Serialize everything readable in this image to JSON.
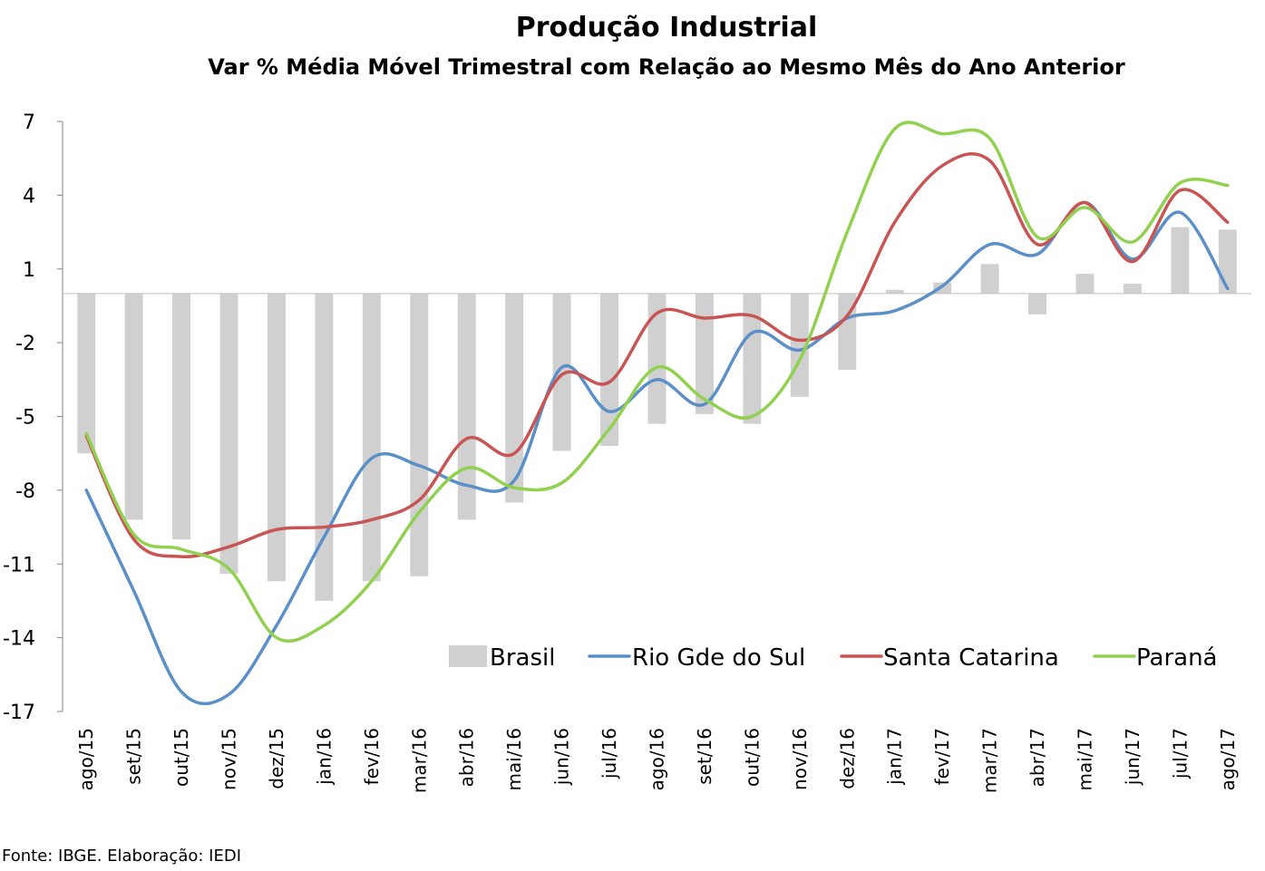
{
  "chart_data": {
    "type": "bar+line",
    "title": "Produção Industrial",
    "subtitle": "Var % Média Móvel Trimestral com Relação ao Mesmo Mês do Ano Anterior",
    "source": "Fonte: IBGE. Elaboração: IEDI",
    "ylim": [
      -17,
      7
    ],
    "yticks": [
      7,
      4,
      1,
      -2,
      -5,
      -8,
      -11,
      -14,
      -17
    ],
    "legend_position": "bottom-right",
    "categories": [
      "ago/15",
      "set/15",
      "out/15",
      "nov/15",
      "dez/15",
      "jan/16",
      "fev/16",
      "mar/16",
      "abr/16",
      "mai/16",
      "jun/16",
      "jul/16",
      "ago/16",
      "set/16",
      "out/16",
      "nov/16",
      "dez/16",
      "jan/17",
      "fev/17",
      "mar/17",
      "abr/17",
      "mai/17",
      "jun/17",
      "jul/17",
      "ago/17"
    ],
    "series": [
      {
        "name": "Brasil",
        "kind": "bar",
        "color": "#d0d0d0",
        "values": [
          -6.5,
          -9.2,
          -10.0,
          -11.4,
          -11.7,
          -12.5,
          -11.7,
          -11.5,
          -9.2,
          -8.5,
          -6.4,
          -6.2,
          -5.3,
          -4.9,
          -5.3,
          -4.2,
          -3.1,
          0.15,
          0.45,
          1.2,
          -0.85,
          0.8,
          0.4,
          2.7,
          2.6
        ]
      },
      {
        "name": "Rio Gde do Sul",
        "kind": "line",
        "color": "#5b8fc8",
        "values": [
          -8.0,
          -12.1,
          -16.2,
          -16.3,
          -13.5,
          -9.9,
          -6.7,
          -7.0,
          -7.8,
          -7.6,
          -3.0,
          -4.8,
          -3.5,
          -4.5,
          -1.6,
          -2.3,
          -1.0,
          -0.7,
          0.3,
          2.0,
          1.6,
          3.7,
          1.4,
          3.3,
          0.2
        ]
      },
      {
        "name": "Santa Catarina",
        "kind": "line",
        "color": "#c85454",
        "values": [
          -5.8,
          -10.0,
          -10.7,
          -10.3,
          -9.6,
          -9.5,
          -9.2,
          -8.4,
          -5.9,
          -6.5,
          -3.3,
          -3.6,
          -0.8,
          -1.0,
          -0.9,
          -1.9,
          -0.9,
          2.9,
          5.2,
          5.4,
          2.0,
          3.7,
          1.3,
          4.2,
          2.9
        ]
      },
      {
        "name": "Paraná",
        "kind": "line",
        "color": "#92d050",
        "values": [
          -5.7,
          -9.8,
          -10.4,
          -11.2,
          -14.0,
          -13.5,
          -11.7,
          -8.9,
          -7.1,
          -7.9,
          -7.7,
          -5.5,
          -3.0,
          -4.3,
          -5.0,
          -2.7,
          2.5,
          6.7,
          6.5,
          6.3,
          2.3,
          3.5,
          2.1,
          4.5,
          4.4
        ]
      }
    ]
  }
}
